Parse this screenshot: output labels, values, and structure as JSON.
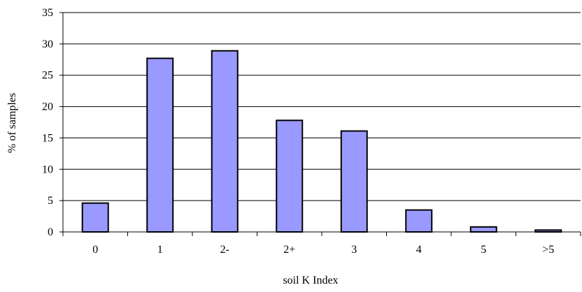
{
  "chart_data": {
    "type": "bar",
    "title": "",
    "xlabel": "soil K Index",
    "ylabel": "% of samples",
    "categories": [
      "0",
      "1",
      "2-",
      "2+",
      "3",
      "4",
      "5",
      ">5"
    ],
    "values": [
      4.6,
      27.7,
      28.9,
      17.8,
      16.1,
      3.5,
      0.8,
      0.3
    ],
    "ylim": [
      0,
      35
    ],
    "yticks": [
      "0",
      "5",
      "10",
      "15",
      "20",
      "25",
      "30",
      "35"
    ],
    "grid": true,
    "legend": "none",
    "colors": {
      "bar_fill": "#9999ff",
      "bar_stroke": "#000000",
      "grid": "#000000"
    }
  }
}
